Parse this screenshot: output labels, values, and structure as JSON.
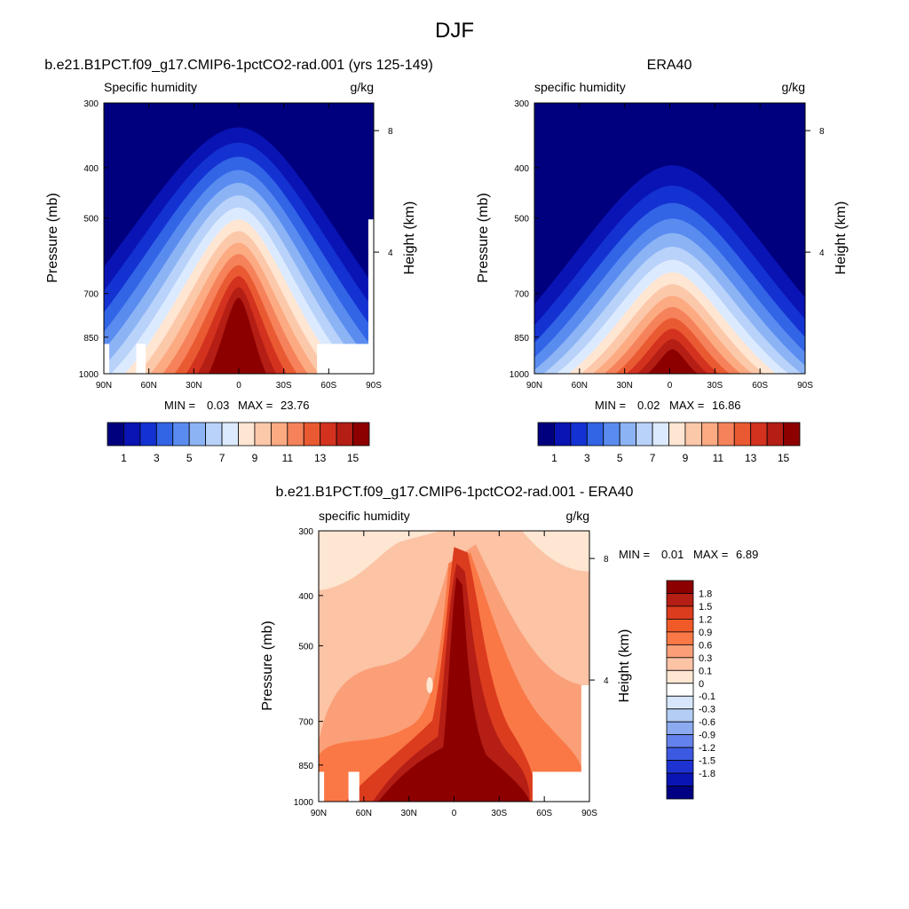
{
  "figure": {
    "title": "DJF"
  },
  "panels": [
    {
      "title": "b.e21.B1PCT.f09_g17.CMIP6-1pctCO2-rad.001 (yrs 125-149)",
      "left_label": "Specific humidity",
      "right_label": "g/kg",
      "ylabel": "Pressure (mb)",
      "y2label": "Height (km)",
      "min_label": "MIN =",
      "min_value": "0.03",
      "max_label": "MAX =",
      "max_value": "23.76"
    },
    {
      "title": "ERA40",
      "left_label": "specific humidity",
      "right_label": "g/kg",
      "ylabel": "Pressure (mb)",
      "y2label": "Height (km)",
      "min_label": "MIN =",
      "min_value": "0.02",
      "max_label": "MAX =",
      "max_value": "16.86"
    },
    {
      "title": "b.e21.B1PCT.f09_g17.CMIP6-1pctCO2-rad.001 - ERA40",
      "left_label": "specific humidity",
      "right_label": "g/kg",
      "ylabel": "Pressure (mb)",
      "y2label": "Height (km)",
      "min_label": "MIN =",
      "min_value": "0.01",
      "max_label": "MAX =",
      "max_value": "6.89"
    }
  ],
  "chart_data": [
    {
      "type": "heatmap",
      "title": "b.e21.B1PCT.f09_g17.CMIP6-1pctCO2-rad.001 (yrs 125-149)",
      "subtitle_left": "Specific humidity",
      "units": "g/kg",
      "ylabel": "Pressure (mb)",
      "y2label": "Height (km)",
      "x_ticks": [
        "90N",
        "60N",
        "30N",
        "0",
        "30S",
        "60S",
        "90S"
      ],
      "xlim": [
        90,
        -90
      ],
      "y_ticks": [
        300,
        400,
        500,
        700,
        850,
        1000
      ],
      "ylim": [
        1000,
        300
      ],
      "y_scale": "log",
      "y2_ticks": [
        8,
        4
      ],
      "min": 0.03,
      "max": 23.76,
      "contour_levels": [
        1,
        2,
        3,
        4,
        5,
        6,
        7,
        8,
        9,
        10,
        11,
        12,
        13,
        14,
        15
      ],
      "colorbar_labels": [
        "1",
        "3",
        "5",
        "7",
        "9",
        "11",
        "13",
        "15"
      ],
      "colors": [
        "#00007f",
        "#0a14b4",
        "#1432d2",
        "#3264e6",
        "#5a8cf0",
        "#8cb4f5",
        "#b9d2fa",
        "#dceaff",
        "#ffe6d2",
        "#fcc8aa",
        "#fcaa82",
        "#f5825a",
        "#ea5a32",
        "#d2321e",
        "#b41e14",
        "#8c0000"
      ]
    },
    {
      "type": "heatmap",
      "title": "ERA40",
      "subtitle_left": "specific humidity",
      "units": "g/kg",
      "ylabel": "Pressure (mb)",
      "y2label": "Height (km)",
      "x_ticks": [
        "90N",
        "60N",
        "30N",
        "0",
        "30S",
        "60S",
        "90S"
      ],
      "xlim": [
        90,
        -90
      ],
      "y_ticks": [
        300,
        400,
        500,
        700,
        850,
        1000
      ],
      "ylim": [
        1000,
        300
      ],
      "y_scale": "log",
      "y2_ticks": [
        8,
        4
      ],
      "min": 0.02,
      "max": 16.86,
      "contour_levels": [
        1,
        2,
        3,
        4,
        5,
        6,
        7,
        8,
        9,
        10,
        11,
        12,
        13,
        14,
        15
      ],
      "colorbar_labels": [
        "1",
        "3",
        "5",
        "7",
        "9",
        "11",
        "13",
        "15"
      ],
      "colors": [
        "#00007f",
        "#0a14b4",
        "#1432d2",
        "#3264e6",
        "#5a8cf0",
        "#8cb4f5",
        "#b9d2fa",
        "#dceaff",
        "#ffe6d2",
        "#fcc8aa",
        "#fcaa82",
        "#f5825a",
        "#ea5a32",
        "#d2321e",
        "#b41e14",
        "#8c0000"
      ]
    },
    {
      "type": "heatmap",
      "title": "b.e21.B1PCT.f09_g17.CMIP6-1pctCO2-rad.001 - ERA40",
      "subtitle_left": "specific humidity",
      "units": "g/kg",
      "ylabel": "Pressure (mb)",
      "y2label": "Height (km)",
      "x_ticks": [
        "90N",
        "60N",
        "30N",
        "0",
        "30S",
        "60S",
        "90S"
      ],
      "xlim": [
        90,
        -90
      ],
      "y_ticks": [
        300,
        400,
        500,
        700,
        850,
        1000
      ],
      "ylim": [
        1000,
        300
      ],
      "y_scale": "log",
      "y2_ticks": [
        8,
        4
      ],
      "min": 0.01,
      "max": 6.89,
      "colorbar_labels": [
        "1.8",
        "1.5",
        "1.2",
        "0.9",
        "0.6",
        "0.3",
        "0.1",
        "0",
        "-0.1",
        "-0.3",
        "-0.6",
        "-0.9",
        "-1.2",
        "-1.5",
        "-1.8"
      ],
      "colors": [
        "#8c0000",
        "#b41e14",
        "#dc3c1e",
        "#f05a28",
        "#fa7846",
        "#fa9f78",
        "#fcc3a5",
        "#fde6d2",
        "#ffffff",
        "#d7e6fa",
        "#b4cdf5",
        "#8caaf0",
        "#6482eb",
        "#3c5ae1",
        "#1e32d2",
        "#0a14b4",
        "#000082"
      ]
    }
  ]
}
